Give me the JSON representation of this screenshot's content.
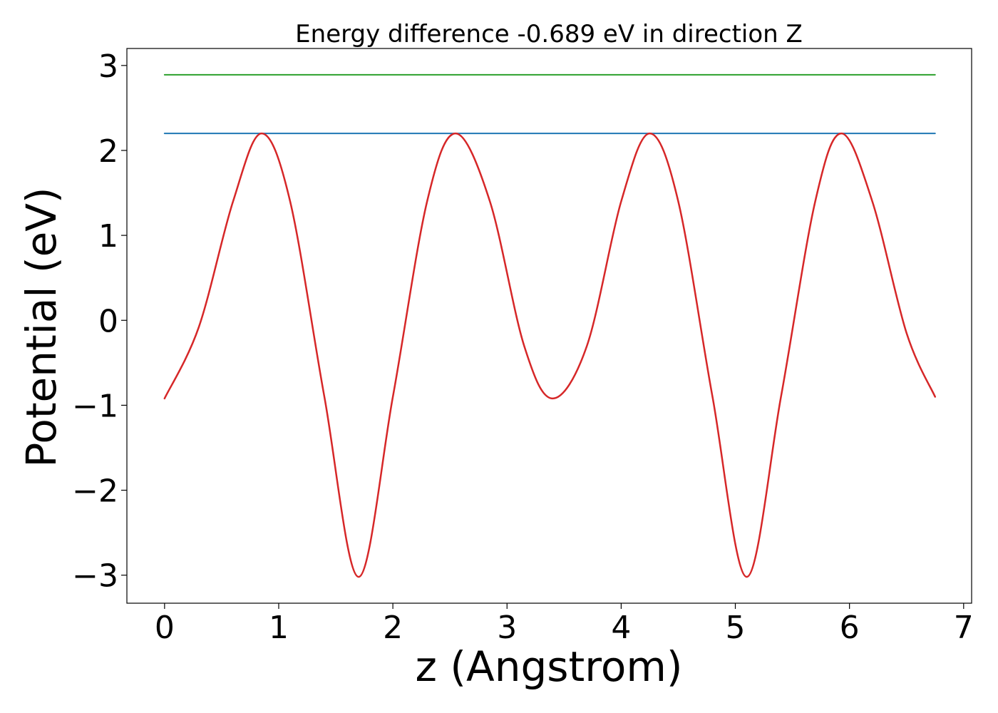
{
  "chart_data": {
    "type": "line",
    "title": "Energy difference -0.689 eV in direction Z",
    "xlabel": "z (Angstrom)",
    "ylabel": "Potential (eV)",
    "xlim": [
      -0.33,
      7.07
    ],
    "ylim": [
      -3.33,
      3.2
    ],
    "xticks": [
      0,
      1,
      2,
      3,
      4,
      5,
      6,
      7
    ],
    "yticks": [
      3,
      2,
      1,
      0,
      -1,
      -2,
      -3
    ],
    "xtick_labels": [
      "0",
      "1",
      "2",
      "3",
      "4",
      "5",
      "6",
      "7"
    ],
    "ytick_labels": [
      "3",
      "2",
      "1",
      "0",
      "−1",
      "−2",
      "−3"
    ],
    "grid": false,
    "legend": "none",
    "series": [
      {
        "color": "#2ca02c",
        "x": [
          0,
          6.75
        ],
        "y": [
          2.89,
          2.89
        ]
      },
      {
        "color": "#1f77b4",
        "x": [
          0,
          6.75
        ],
        "y": [
          2.2,
          2.2
        ]
      },
      {
        "color": "#d62728",
        "x": [
          0,
          0.3,
          0.6,
          0.85,
          1.1,
          1.4,
          1.7,
          2.0,
          2.3,
          2.55,
          2.85,
          3.15,
          3.4,
          3.7,
          4.0,
          4.25,
          4.5,
          4.8,
          5.1,
          5.4,
          5.7,
          5.93,
          6.2,
          6.5,
          6.75
        ],
        "y": [
          -0.92,
          -0.08,
          1.4,
          2.2,
          1.4,
          -0.9,
          -3.02,
          -0.9,
          1.4,
          2.2,
          1.4,
          -0.3,
          -0.92,
          -0.3,
          1.4,
          2.2,
          1.4,
          -0.9,
          -3.02,
          -0.9,
          1.4,
          2.2,
          1.4,
          -0.15,
          -0.9
        ]
      }
    ]
  }
}
